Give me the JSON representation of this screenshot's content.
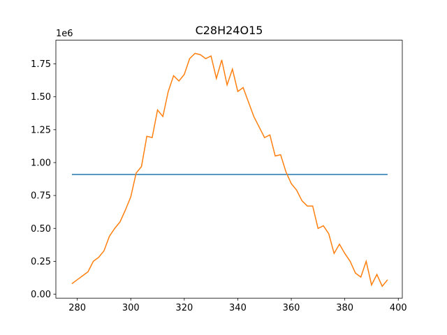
{
  "chart_data": {
    "type": "line",
    "title": "C28H24O15",
    "y_offset_label": "1e6",
    "series": [
      {
        "color": "#1f77b4",
        "x": [
          278,
          396
        ],
        "values": [
          0.91,
          0.91
        ]
      },
      {
        "color": "#ff7f0e",
        "x": [
          278,
          280,
          282,
          284,
          286,
          288,
          290,
          292,
          294,
          296,
          298,
          300,
          302,
          304,
          306,
          308,
          310,
          312,
          314,
          316,
          318,
          320,
          322,
          324,
          326,
          328,
          330,
          332,
          334,
          336,
          338,
          340,
          342,
          344,
          346,
          348,
          350,
          352,
          354,
          356,
          358,
          360,
          362,
          364,
          366,
          368,
          370,
          372,
          374,
          376,
          378,
          380,
          382,
          384,
          386,
          388,
          390,
          392,
          394,
          396
        ],
        "values": [
          0.08,
          0.11,
          0.14,
          0.17,
          0.25,
          0.28,
          0.33,
          0.44,
          0.5,
          0.55,
          0.64,
          0.74,
          0.92,
          0.97,
          1.2,
          1.19,
          1.4,
          1.35,
          1.54,
          1.66,
          1.62,
          1.67,
          1.79,
          1.83,
          1.82,
          1.79,
          1.81,
          1.64,
          1.78,
          1.59,
          1.71,
          1.54,
          1.57,
          1.46,
          1.35,
          1.27,
          1.19,
          1.21,
          1.05,
          1.06,
          0.93,
          0.84,
          0.79,
          0.71,
          0.67,
          0.67,
          0.5,
          0.52,
          0.46,
          0.31,
          0.38,
          0.31,
          0.25,
          0.16,
          0.13,
          0.25,
          0.07,
          0.15,
          0.06,
          0.11
        ]
      }
    ],
    "xlim": [
      272,
      401.5
    ],
    "xticks": [
      280,
      300,
      320,
      340,
      360,
      380,
      400
    ],
    "ylim": [
      -0.03,
      1.93
    ],
    "yticks": [
      {
        "value": 0,
        "label": "0.00"
      },
      {
        "value": 0.25,
        "label": "0.25"
      },
      {
        "value": 0.5,
        "label": "0.50"
      },
      {
        "value": 0.75,
        "label": "0.75"
      },
      {
        "value": 1,
        "label": "1.00"
      },
      {
        "value": 1.25,
        "label": "1.25"
      },
      {
        "value": 1.5,
        "label": "1.50"
      },
      {
        "value": 1.75,
        "label": "1.75"
      }
    ]
  }
}
